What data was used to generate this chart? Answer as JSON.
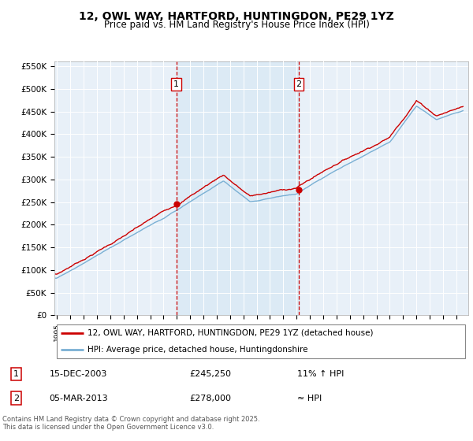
{
  "title": "12, OWL WAY, HARTFORD, HUNTINGDON, PE29 1YZ",
  "subtitle": "Price paid vs. HM Land Registry's House Price Index (HPI)",
  "legend_line1": "12, OWL WAY, HARTFORD, HUNTINGDON, PE29 1YZ (detached house)",
  "legend_line2": "HPI: Average price, detached house, Huntingdonshire",
  "sale1_date": "15-DEC-2003",
  "sale1_price": "£245,250",
  "sale1_hpi": "11% ↑ HPI",
  "sale2_date": "05-MAR-2013",
  "sale2_price": "£278,000",
  "sale2_hpi": "≈ HPI",
  "footer": "Contains HM Land Registry data © Crown copyright and database right 2025.\nThis data is licensed under the Open Government Licence v3.0.",
  "hpi_color": "#7ab0d4",
  "price_color": "#cc0000",
  "vline_color": "#cc0000",
  "shade_color": "#ddeeff",
  "background_color": "#e8f0f8",
  "ylim": [
    0,
    560000
  ],
  "yticks": [
    0,
    50000,
    100000,
    150000,
    200000,
    250000,
    300000,
    350000,
    400000,
    450000,
    500000,
    550000
  ],
  "sale1_x": 2003.96,
  "sale2_x": 2013.17,
  "sale1_price_val": 245250,
  "sale2_price_val": 278000
}
